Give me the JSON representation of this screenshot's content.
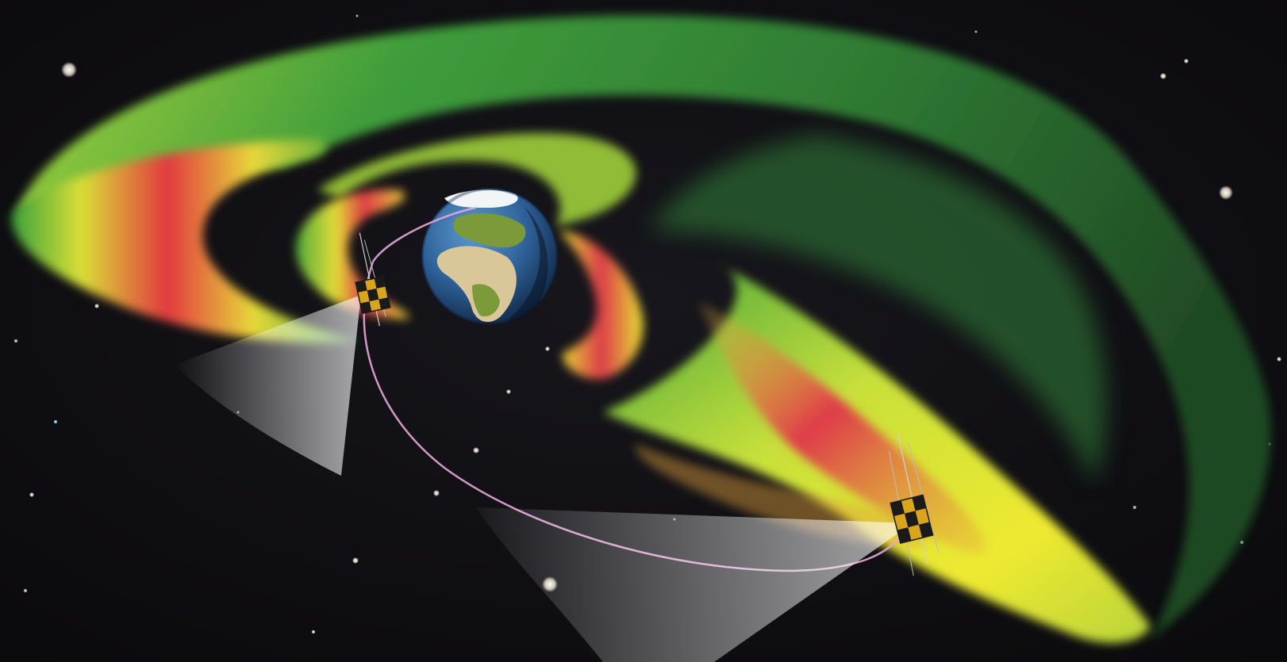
{
  "scene": {
    "subject": "radiation-belts",
    "colors": {
      "space": "#0d0c10",
      "belt_green": "#3a9a3c",
      "belt_lime": "#a6d23a",
      "belt_yellow": "#ece72e",
      "belt_red": "#e03a45",
      "ocean": "#2e6ea5",
      "land": "#7d9a3a",
      "desert": "#d9c79a",
      "ice": "#f2f5f8",
      "orbit": "#e7a6d8",
      "probe_gold": "#d8a51c",
      "probe_dark": "#1a1a1a"
    },
    "icons": {
      "planet": "earth-icon",
      "probe_a": "satellite-icon",
      "probe_b": "satellite-icon"
    }
  }
}
